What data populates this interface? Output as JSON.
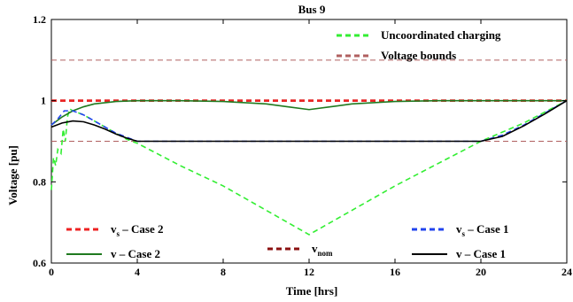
{
  "chart_data": {
    "type": "line",
    "title": "Bus 9",
    "xlabel": "Time [hrs]",
    "ylabel": "Voltage [pu]",
    "xlim": [
      0,
      24
    ],
    "ylim": [
      0.6,
      1.2
    ],
    "xticks": [
      0,
      4,
      8,
      12,
      16,
      20,
      24
    ],
    "yticks": [
      0.6,
      0.8,
      1,
      1.2
    ],
    "xtick_labels": [
      "0",
      "4",
      "8",
      "12",
      "16",
      "20",
      "24"
    ],
    "ytick_labels": [
      "0.6",
      "0.8",
      "1",
      "1.2"
    ],
    "grid": false,
    "series": [
      {
        "name": "Uncoordinated charging",
        "color": "#33ee33",
        "dash": "dashed",
        "x": [
          0,
          0.1,
          0.2,
          0.3,
          0.45,
          0.55,
          0.65,
          0.75,
          0.85,
          1.0,
          1.5,
          2.0,
          2.5,
          3.0,
          3.5,
          4.0,
          6,
          8,
          10,
          12,
          14,
          16,
          18,
          20,
          22,
          24
        ],
        "y": [
          0.78,
          0.86,
          0.84,
          0.88,
          0.87,
          0.93,
          0.9,
          0.96,
          0.98,
          0.975,
          0.965,
          0.95,
          0.935,
          0.92,
          0.905,
          0.895,
          0.84,
          0.79,
          0.73,
          0.67,
          0.73,
          0.79,
          0.845,
          0.9,
          0.945,
          1.0
        ]
      },
      {
        "name": "Voltage bounds",
        "color": "#b06060",
        "dash": "dashed",
        "lines": [
          1.1,
          0.9
        ]
      },
      {
        "name": "v_nom",
        "color": "#8b1010",
        "dash": "dashed",
        "x": [
          0,
          24
        ],
        "y": [
          1.0,
          1.0
        ]
      },
      {
        "name": "v_s – Case 2",
        "color": "#ee2222",
        "dash": "dashed",
        "x": [
          0,
          24
        ],
        "y": [
          1.0,
          1.0
        ]
      },
      {
        "name": "v – Case 2",
        "color": "#1f7a1f",
        "dash": "solid",
        "x": [
          0,
          0.5,
          1,
          1.5,
          2,
          3,
          4,
          6,
          8,
          10,
          11,
          12,
          13,
          14,
          16,
          18,
          20,
          22,
          24
        ],
        "y": [
          0.94,
          0.96,
          0.975,
          0.985,
          0.992,
          0.998,
          1.0,
          1.0,
          0.998,
          0.992,
          0.985,
          0.978,
          0.985,
          0.992,
          0.998,
          1.0,
          1.0,
          1.0,
          1.0
        ]
      },
      {
        "name": "v_s – Case 1",
        "color": "#2244ee",
        "dash": "dashed",
        "x": [
          0,
          0.3,
          0.6,
          1,
          1.5,
          2,
          2.5,
          3,
          3.5,
          4,
          6,
          8,
          10,
          12,
          14,
          16,
          18,
          20,
          21,
          22,
          23,
          24
        ],
        "y": [
          0.94,
          0.955,
          0.975,
          0.975,
          0.965,
          0.95,
          0.935,
          0.92,
          0.91,
          0.9,
          0.9,
          0.9,
          0.9,
          0.9,
          0.9,
          0.9,
          0.9,
          0.9,
          0.915,
          0.94,
          0.97,
          1.0
        ]
      },
      {
        "name": "v – Case 1",
        "color": "#000000",
        "dash": "solid",
        "x": [
          0,
          0.5,
          1,
          1.5,
          2,
          2.5,
          3,
          3.5,
          4,
          6,
          8,
          10,
          12,
          14,
          16,
          18,
          20,
          21,
          22,
          23,
          24
        ],
        "y": [
          0.935,
          0.945,
          0.95,
          0.948,
          0.94,
          0.93,
          0.918,
          0.908,
          0.9,
          0.9,
          0.9,
          0.9,
          0.9,
          0.9,
          0.9,
          0.9,
          0.9,
          0.912,
          0.938,
          0.968,
          1.0
        ]
      }
    ],
    "legend": [
      {
        "label": "Uncoordinated charging",
        "color": "#33ee33",
        "dash": "dashed",
        "placement": "top-right"
      },
      {
        "label": "Voltage bounds",
        "color": "#b06060",
        "dash": "dashed",
        "placement": "top-right"
      },
      {
        "label": "v",
        "sub": "s",
        "suffix": " – Case 2",
        "color": "#ee2222",
        "dash": "dashed",
        "placement": "bottom-left"
      },
      {
        "label": "v – Case 2",
        "sub": "",
        "suffix": "",
        "color": "#1f7a1f",
        "dash": "solid",
        "placement": "bottom-left"
      },
      {
        "label": "v",
        "sub": "nom",
        "suffix": "",
        "color": "#8b1010",
        "dash": "dashed",
        "placement": "bottom-center"
      },
      {
        "label": "v",
        "sub": "s",
        "suffix": " – Case 1",
        "color": "#2244ee",
        "dash": "dashed",
        "placement": "bottom-right"
      },
      {
        "label": "v – Case 1",
        "sub": "",
        "suffix": "",
        "color": "#000000",
        "dash": "solid",
        "placement": "bottom-right"
      }
    ]
  }
}
